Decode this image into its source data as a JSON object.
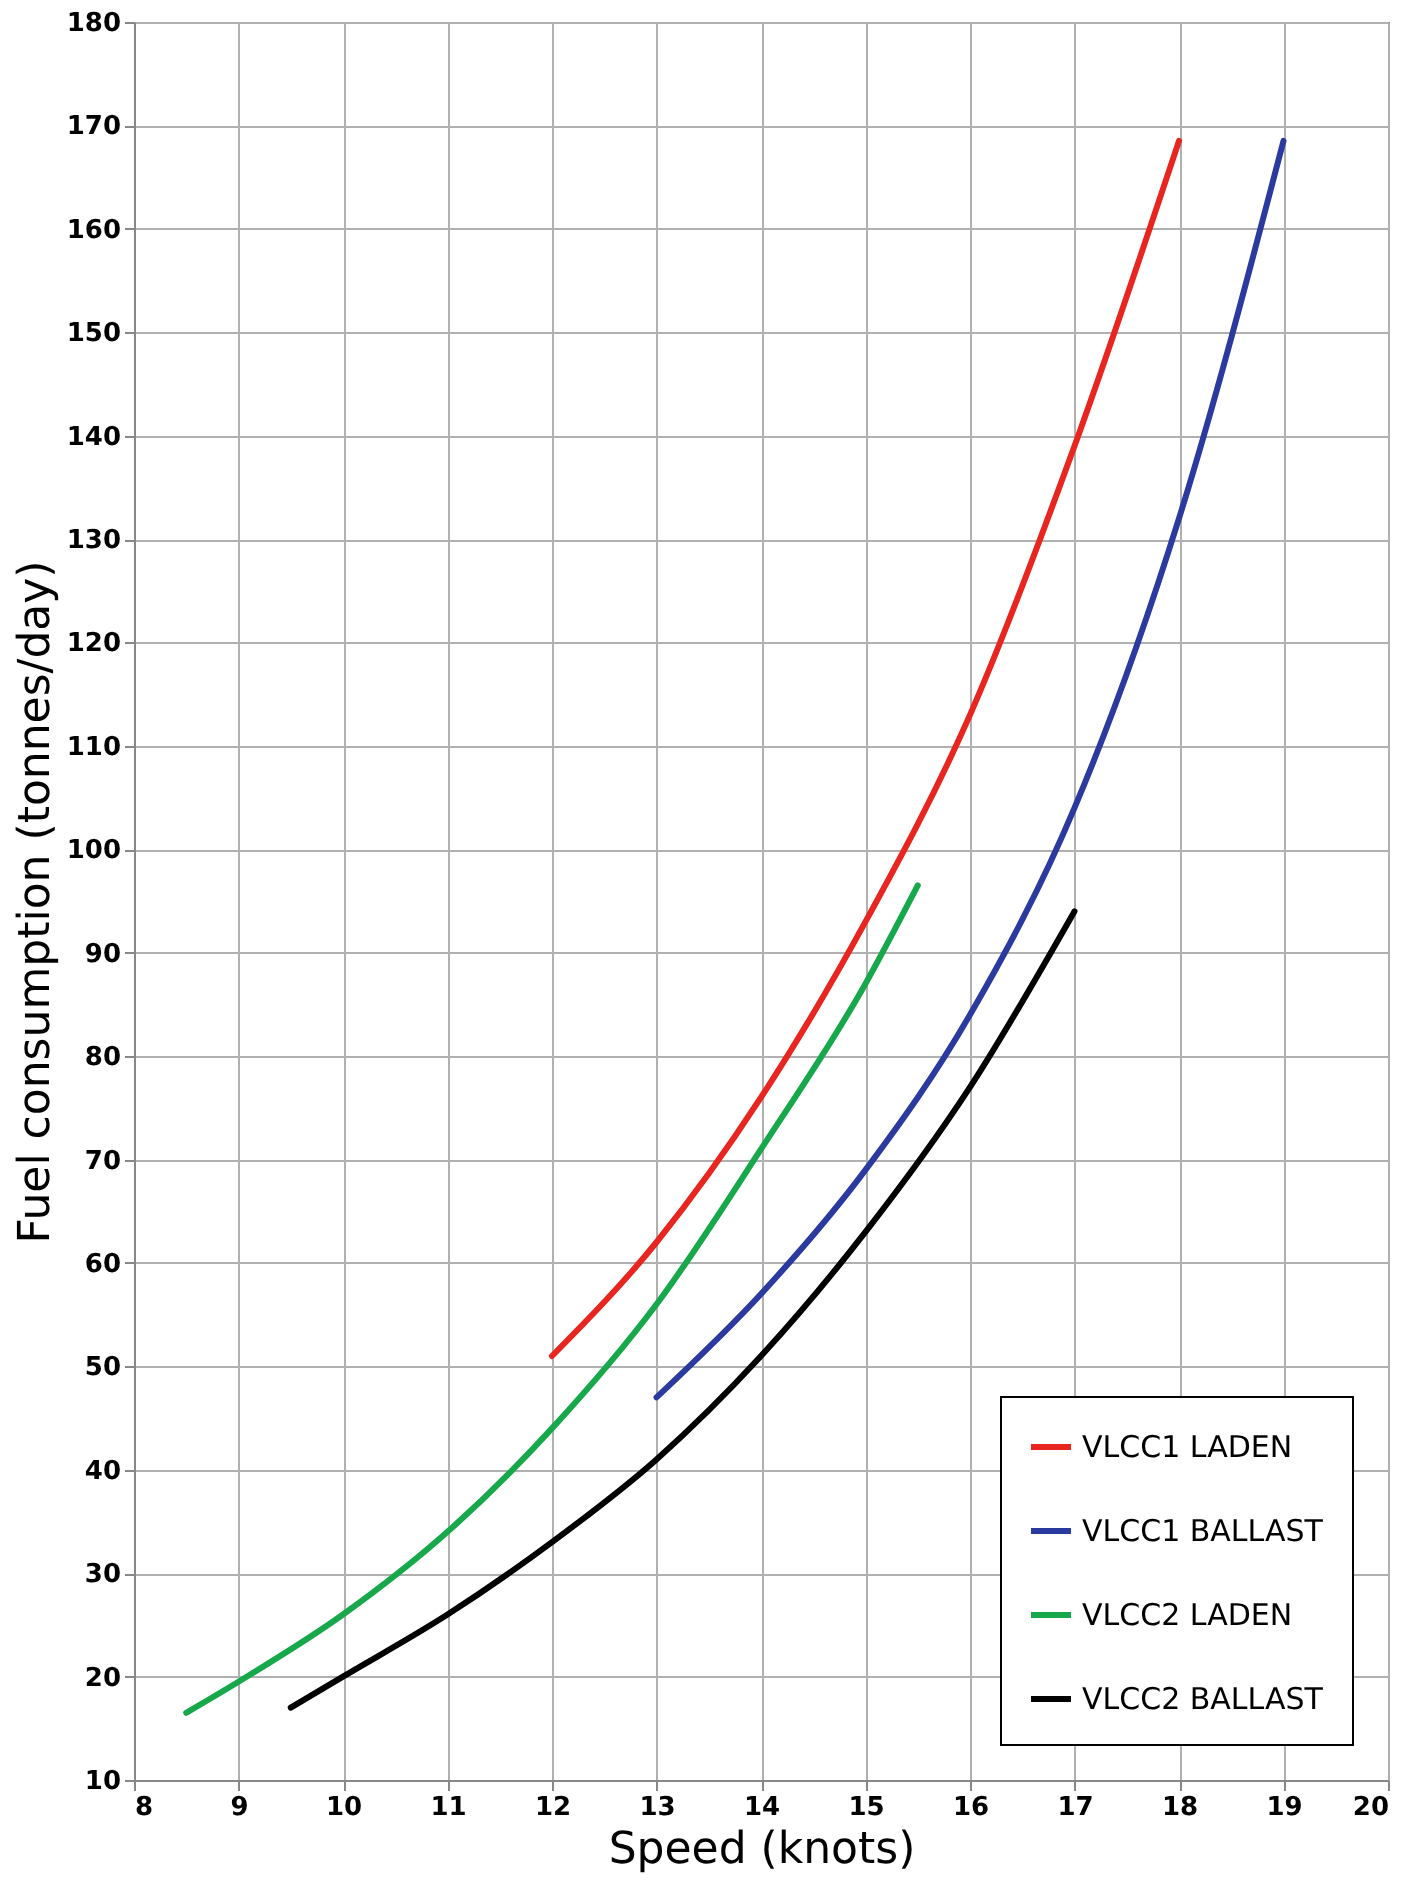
{
  "chart_data": {
    "type": "line",
    "xlabel": "Speed (knots)",
    "ylabel": "Fuel consumption (tonnes/day)",
    "xlim": [
      8,
      20
    ],
    "xticks": [
      8,
      9,
      10,
      11,
      12,
      13,
      14,
      15,
      16,
      17,
      18,
      19,
      20
    ],
    "ylim": [
      10,
      180
    ],
    "yticks": [
      10,
      20,
      30,
      40,
      50,
      60,
      70,
      80,
      90,
      100,
      110,
      120,
      130,
      140,
      150,
      160,
      170,
      180
    ],
    "grid": true,
    "legend": "bottom right",
    "marker": "none",
    "line_style": "solid",
    "series": [
      {
        "name": "VLCC1 LADEN",
        "color": "#e8251f",
        "x": [
          12,
          13,
          14,
          15,
          16,
          17,
          18
        ],
        "values": [
          51,
          62,
          76,
          93,
          113,
          139,
          168.5
        ]
      },
      {
        "name": "VLCC1 BALLAST",
        "color": "#2b3a9e",
        "x": [
          13,
          14,
          15,
          16,
          17,
          18,
          19
        ],
        "values": [
          47,
          57,
          69,
          84,
          104,
          132,
          168.5
        ]
      },
      {
        "name": "VLCC2 LADEN",
        "color": "#16a84a",
        "x": [
          8.5,
          9,
          10,
          11,
          12,
          13,
          14,
          15,
          15.5
        ],
        "values": [
          16.5,
          19.5,
          26,
          34,
          44,
          56,
          71,
          87,
          96.5
        ]
      },
      {
        "name": "VLCC2 BALLAST",
        "color": "#000000",
        "x": [
          9.5,
          10,
          11,
          12,
          13,
          14,
          15,
          16,
          17
        ],
        "values": [
          17,
          20,
          26,
          33,
          41,
          51,
          63,
          77,
          94
        ]
      }
    ]
  }
}
